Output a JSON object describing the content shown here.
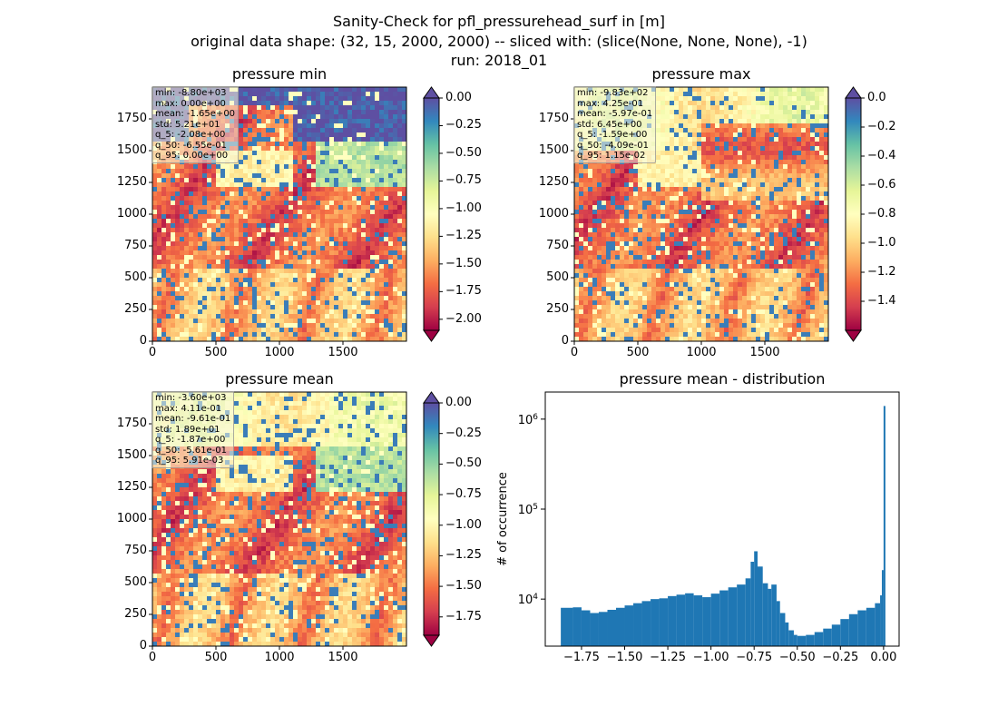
{
  "title_lines": [
    "Sanity-Check for pfl_pressurehead_surf in [m]",
    "original data shape: (32, 15, 2000, 2000) -- sliced with: (slice(None, None, None), -1)",
    "run: 2018_01"
  ],
  "chart_data": [
    {
      "type": "heatmap",
      "title": "pressure min",
      "colormap": "Spectral",
      "xticks": [
        0,
        500,
        1000,
        1500
      ],
      "yticks": [
        0,
        250,
        500,
        750,
        1000,
        1250,
        1500,
        1750
      ],
      "xlim": [
        0,
        2000
      ],
      "ylim": [
        0,
        2000
      ],
      "colorbar": {
        "ticks": [
          "0.00",
          "−0.25",
          "−0.50",
          "−0.75",
          "−1.00",
          "−1.25",
          "−1.50",
          "−1.75",
          "−2.00"
        ],
        "vmin": -2.1,
        "vmax": 0.0,
        "extend": "both"
      },
      "stats": [
        "min: -8.80e+03",
        "max: 0.00e+00",
        "mean: -1.65e+00",
        "std: 5.21e+01",
        "q_5: -2.08e+00",
        "q_50: -6.55e-01",
        "q_95: 0.00e+00"
      ]
    },
    {
      "type": "heatmap",
      "title": "pressure max",
      "colormap": "Spectral",
      "xticks": [
        0,
        500,
        1000,
        1500
      ],
      "yticks": [
        0,
        250,
        500,
        750,
        1000,
        1250,
        1500,
        1750
      ],
      "xlim": [
        0,
        2000
      ],
      "ylim": [
        0,
        2000
      ],
      "colorbar": {
        "ticks": [
          "0.0",
          "−0.2",
          "−0.4",
          "−0.6",
          "−0.8",
          "−1.0",
          "−1.2",
          "−1.4"
        ],
        "vmin": -1.6,
        "vmax": 0.0,
        "extend": "both"
      },
      "stats": [
        "min: -9.83e+02",
        "max: 4.25e-01",
        "mean: -5.97e-01",
        "std: 6.45e+00",
        "q_5: -1.59e+00",
        "q_50: -4.09e-01",
        "q_95: 1.15e-02"
      ]
    },
    {
      "type": "heatmap",
      "title": "pressure mean",
      "colormap": "Spectral",
      "xticks": [
        0,
        500,
        1000,
        1500
      ],
      "yticks": [
        0,
        250,
        500,
        750,
        1000,
        1250,
        1500,
        1750
      ],
      "xlim": [
        0,
        2000
      ],
      "ylim": [
        0,
        2000
      ],
      "colorbar": {
        "ticks": [
          "0.00",
          "−0.25",
          "−0.50",
          "−0.75",
          "−1.00",
          "−1.25",
          "−1.50",
          "−1.75"
        ],
        "vmin": -1.9,
        "vmax": 0.0,
        "extend": "both"
      },
      "stats": [
        "min: -3.60e+03",
        "max: 4.11e-01",
        "mean: -9.61e-01",
        "std: 1.89e+01",
        "q_5: -1.87e+00",
        "q_50: -5.61e-01",
        "q_95: 5.91e-03"
      ]
    },
    {
      "type": "bar",
      "subtype": "histogram",
      "title": "pressure mean - distribution",
      "xlabel": "",
      "ylabel": "# of occurrence",
      "yscale": "log",
      "xlim": [
        -1.96,
        0.09
      ],
      "ylim": [
        3000,
        2000000
      ],
      "xticks": [
        -1.75,
        -1.5,
        -1.25,
        -1.0,
        -0.75,
        -0.5,
        -0.25,
        0.0
      ],
      "xtick_labels": [
        "−1.75",
        "−1.50",
        "−1.25",
        "−1.00",
        "−0.75",
        "−0.50",
        "−0.25",
        "0.00"
      ],
      "yticks": [
        10000,
        100000,
        1000000
      ],
      "ytick_labels": [
        "10^4",
        "10^5",
        "10^6"
      ],
      "color": "#1f77b4",
      "bins": [
        [
          -1.87,
          8000
        ],
        [
          -1.8,
          8100
        ],
        [
          -1.75,
          7500
        ],
        [
          -1.7,
          7000
        ],
        [
          -1.65,
          7200
        ],
        [
          -1.6,
          7600
        ],
        [
          -1.55,
          8000
        ],
        [
          -1.5,
          8500
        ],
        [
          -1.45,
          9000
        ],
        [
          -1.4,
          9500
        ],
        [
          -1.35,
          10000
        ],
        [
          -1.3,
          10200
        ],
        [
          -1.25,
          10800
        ],
        [
          -1.2,
          11200
        ],
        [
          -1.15,
          11600
        ],
        [
          -1.1,
          11000
        ],
        [
          -1.05,
          10500
        ],
        [
          -1.0,
          11500
        ],
        [
          -0.95,
          12500
        ],
        [
          -0.9,
          13500
        ],
        [
          -0.85,
          14500
        ],
        [
          -0.8,
          17000
        ],
        [
          -0.77,
          26000
        ],
        [
          -0.75,
          34000
        ],
        [
          -0.73,
          23000
        ],
        [
          -0.7,
          15000
        ],
        [
          -0.67,
          13000
        ],
        [
          -0.65,
          14500
        ],
        [
          -0.62,
          9500
        ],
        [
          -0.6,
          7000
        ],
        [
          -0.57,
          5500
        ],
        [
          -0.55,
          4500
        ],
        [
          -0.52,
          4000
        ],
        [
          -0.5,
          3900
        ],
        [
          -0.45,
          4000
        ],
        [
          -0.4,
          4300
        ],
        [
          -0.35,
          4700
        ],
        [
          -0.3,
          5200
        ],
        [
          -0.25,
          6000
        ],
        [
          -0.2,
          6800
        ],
        [
          -0.15,
          7500
        ],
        [
          -0.1,
          8000
        ],
        [
          -0.05,
          9000
        ],
        [
          -0.02,
          11000
        ],
        [
          -0.01,
          21000
        ],
        [
          0.0,
          1400000
        ]
      ]
    }
  ]
}
